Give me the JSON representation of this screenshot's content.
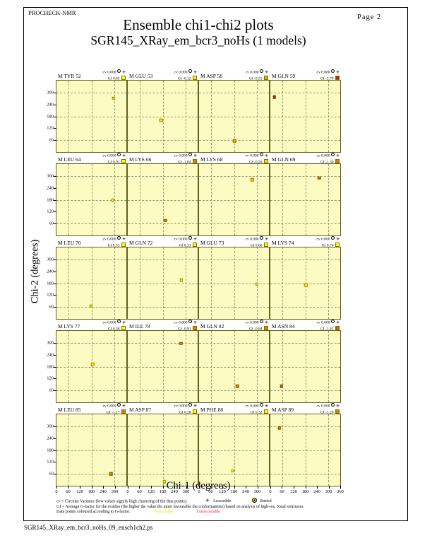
{
  "header": {
    "app": "PROCHECK-NMR",
    "page_label": "Page 2",
    "title": "Ensemble chi1-chi2 plots",
    "subtitle": "SGR145_XRay_em_bcr3_noHs (1 models)"
  },
  "axes": {
    "xlabel": "Chi-1 (degrees)",
    "ylabel": "Chi-2 (degrees)"
  },
  "footnotes": {
    "line1": "cv = Circular Variance (low values signify high clustering of the data points).",
    "accessible_label": "Accessible",
    "buried_label": "Buried",
    "line2": "Gf = Average G-factor for the residue (the higher the value the more favourable the conformations) based on analysis of high-res. Xstal structures",
    "line3_prefix": "Data points coloured according to G-factor:",
    "favourable_label": "Favourable",
    "unfavourable_label": "Unfavourable"
  },
  "footer": {
    "filename": "SGR145_XRay_em_bcr3_noHs_09_ensch1ch2.ps"
  },
  "chart_data": {
    "type": "scatter",
    "title": "Ensemble chi1-chi2 plots",
    "subtitle": "SGR145_XRay_em_bcr3_noHs (1 models)",
    "xlabel": "Chi-1 (degrees)",
    "ylabel": "Chi-2 (degrees)",
    "xlim": [
      0,
      360
    ],
    "ylim": [
      0,
      360
    ],
    "x_ticks": [
      0,
      60,
      120,
      180,
      240,
      300
    ],
    "x_end_tick": 360,
    "y_ticks": [
      300,
      240,
      180,
      120,
      60
    ],
    "gridline_positions_deg": [
      60,
      180,
      300
    ],
    "grid_layout": {
      "rows": 5,
      "cols": 4
    },
    "cv_label": "cv",
    "gf_label": "Gf",
    "subplots": [
      {
        "name": "M TYR 52",
        "cv": "0.000",
        "gf": "0.85",
        "marker_color": "#ffff00",
        "point": {
          "chi1": 294,
          "chi2": 272
        }
      },
      {
        "name": "M GLU 53",
        "cv": "0.000",
        "gf": "-0.12",
        "marker_color": "#fff200",
        "point": {
          "chi1": 172,
          "chi2": 160
        }
      },
      {
        "name": "M ASP 58",
        "cv": "0.000",
        "gf": "-0.55",
        "marker_color": "#e6b800",
        "point": {
          "chi1": 182,
          "chi2": 57
        }
      },
      {
        "name": "M GLN 59",
        "cv": "0.000",
        "gf": "-2.70",
        "marker_color": "#cc2200",
        "point": {
          "chi1": 21,
          "chi2": 278
        }
      },
      {
        "name": "M LEU 64",
        "cv": "0.000",
        "gf": "0.91",
        "marker_color": "#ffff00",
        "point": {
          "chi1": 290,
          "chi2": 178
        }
      },
      {
        "name": "M LYS 66",
        "cv": "0.000",
        "gf": "-1.04",
        "marker_color": "#e08000",
        "point": {
          "chi1": 193,
          "chi2": 76
        }
      },
      {
        "name": "M LYS 68",
        "cv": "0.000",
        "gf": "-0.26",
        "marker_color": "#f2e000",
        "point": {
          "chi1": 274,
          "chi2": 280
        }
      },
      {
        "name": "M GLN 69",
        "cv": "0.000",
        "gf": "-1.30",
        "marker_color": "#dd7700",
        "point": {
          "chi1": 251,
          "chi2": 290
        }
      },
      {
        "name": "M LEU 70",
        "cv": "0.000",
        "gf": "0.53",
        "marker_color": "#ffff00",
        "point": {
          "chi1": 178,
          "chi2": 65
        }
      },
      {
        "name": "M GLN 72",
        "cv": "0.000",
        "gf": "0.33",
        "marker_color": "#ffff00",
        "point": {
          "chi1": 275,
          "chi2": 196
        }
      },
      {
        "name": "M GLU 73",
        "cv": "0.000",
        "gf": "0.60",
        "marker_color": "#ffff00",
        "point": {
          "chi1": 298,
          "chi2": 175
        }
      },
      {
        "name": "M LYS 74",
        "cv": "0.000",
        "gf": "0.76",
        "marker_color": "#ffff00",
        "point": {
          "chi1": 183,
          "chi2": 170
        }
      },
      {
        "name": "M LYS 77",
        "cv": "0.000",
        "gf": "0.38",
        "marker_color": "#ffff00",
        "point": {
          "chi1": 186,
          "chi2": 192
        }
      },
      {
        "name": "M ILE 78",
        "cv": "0.000",
        "gf": "-0.91",
        "marker_color": "#e08000",
        "point": {
          "chi1": 273,
          "chi2": 297
        }
      },
      {
        "name": "M GLN 82",
        "cv": "0.000",
        "gf": "-0.84",
        "marker_color": "#e08000",
        "point": {
          "chi1": 198,
          "chi2": 81
        }
      },
      {
        "name": "M ASN 84",
        "cv": "0.000",
        "gf": "-1.45",
        "marker_color": "#d26000",
        "point": {
          "chi1": 58,
          "chi2": 81
        }
      },
      {
        "name": "M LEU 85",
        "cv": "0.000",
        "gf": "-1.17",
        "marker_color": "#dd7700",
        "point": {
          "chi1": 280,
          "chi2": 60
        }
      },
      {
        "name": "M ASP 87",
        "cv": "0.000",
        "gf": "0.28",
        "marker_color": "#ffff00",
        "point": {
          "chi1": 188,
          "chi2": 20
        }
      },
      {
        "name": "M PHE 88",
        "cv": "0.000",
        "gf": "0.32",
        "marker_color": "#ffff00",
        "point": {
          "chi1": 174,
          "chi2": 76
        }
      },
      {
        "name": "M ASP 89",
        "cv": "0.000",
        "gf": "-1.20",
        "marker_color": "#dd7700",
        "point": {
          "chi1": 46,
          "chi2": 292
        }
      }
    ]
  }
}
